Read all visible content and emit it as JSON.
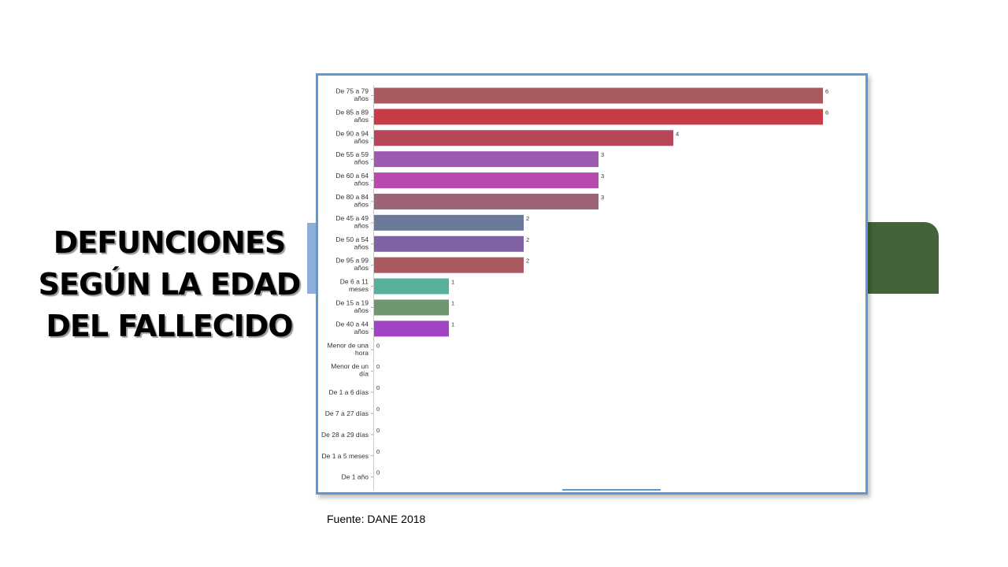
{
  "slide": {
    "title_lines": [
      "DEFUNCIONES",
      "SEGÚN LA EDAD",
      "DEL FALLECIDO"
    ],
    "source": "Fuente: DANE 2018"
  },
  "colors": {
    "frame": "#5b9bd5",
    "deco_blue": "#8faedb",
    "deco_green": "#44633b"
  },
  "chart_data": {
    "type": "bar",
    "orientation": "horizontal",
    "title": "",
    "xlabel": "",
    "ylabel": "",
    "xlim": [
      0,
      6
    ],
    "grid": false,
    "legend": "none",
    "categories": [
      [
        "De 75 a 79",
        "años"
      ],
      [
        "De 85 a 89",
        "años"
      ],
      [
        "De 90 a 94",
        "años"
      ],
      [
        "De 55 a 59",
        "años"
      ],
      [
        "De 60 a 64",
        "años"
      ],
      [
        "De 80 a 84",
        "años"
      ],
      [
        "De 45 a 49",
        "años"
      ],
      [
        "De 50 a 54",
        "años"
      ],
      [
        "De 95 a 99",
        "años"
      ],
      [
        "De 6 a 11",
        "meses"
      ],
      [
        "De 15 a 19",
        "años"
      ],
      [
        "De 40 a 44",
        "años"
      ],
      [
        "Menor de una",
        "hora"
      ],
      [
        "Menor de un",
        "día"
      ],
      [
        "De 1 a 6 días"
      ],
      [
        "De 7 a 27 días"
      ],
      [
        "De 28 a 29 días"
      ],
      [
        "De 1 a 5 meses"
      ],
      [
        "De 1 año"
      ]
    ],
    "values": [
      6,
      6,
      4,
      3,
      3,
      3,
      2,
      2,
      2,
      1,
      1,
      1,
      0,
      0,
      0,
      0,
      0,
      0,
      0
    ],
    "bar_colors": [
      "#a85a60",
      "#c83a46",
      "#b4485a",
      "#9c5ab0",
      "#b84aae",
      "#9c6474",
      "#6c7a9a",
      "#7e62a4",
      "#a85a60",
      "#56b09a",
      "#6e9670",
      "#a044c4",
      "#999999",
      "#999999",
      "#999999",
      "#999999",
      "#999999",
      "#999999",
      "#999999"
    ]
  }
}
